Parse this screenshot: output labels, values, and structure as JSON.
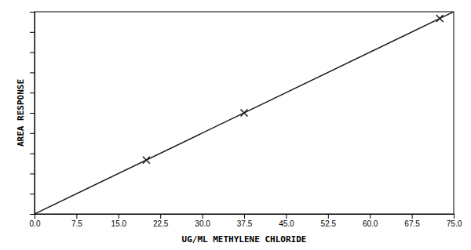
{
  "chart_data": {
    "type": "scatter",
    "xlabel": "UG/ML METHYLENE CHLORIDE",
    "ylabel": "AREA RESPONSE",
    "xlim": [
      0.0,
      75.0
    ],
    "ylim": [
      0.0,
      1.0
    ],
    "xticks": [
      {
        "value": 0.0,
        "label": "0.0"
      },
      7.5,
      {
        "value": 15.0,
        "label": "15.0"
      },
      22.5,
      {
        "value": 30.0,
        "label": "30.0"
      },
      37.5,
      {
        "value": 45.0,
        "label": "45.0"
      },
      52.5,
      {
        "value": 60.0,
        "label": "60.0"
      },
      67.5,
      {
        "value": 75.0,
        "label": "75.0"
      }
    ],
    "yticks": [
      0,
      0.1,
      0.2,
      0.3,
      0.4,
      0.5,
      0.6,
      0.7,
      0.8,
      0.9,
      1
    ],
    "tick_labels": "x",
    "grid": false,
    "series": [
      {
        "type": "line",
        "x": [
          0.0,
          75.0
        ],
        "values": [
          0.0,
          1.0
        ],
        "color": "#1a1a1a"
      },
      {
        "type": "scatter",
        "x": [
          20.0,
          37.5,
          72.5
        ],
        "values": [
          0.2667,
          0.5,
          0.9667
        ],
        "color": "#1a1a1a",
        "marker": "x"
      }
    ]
  }
}
